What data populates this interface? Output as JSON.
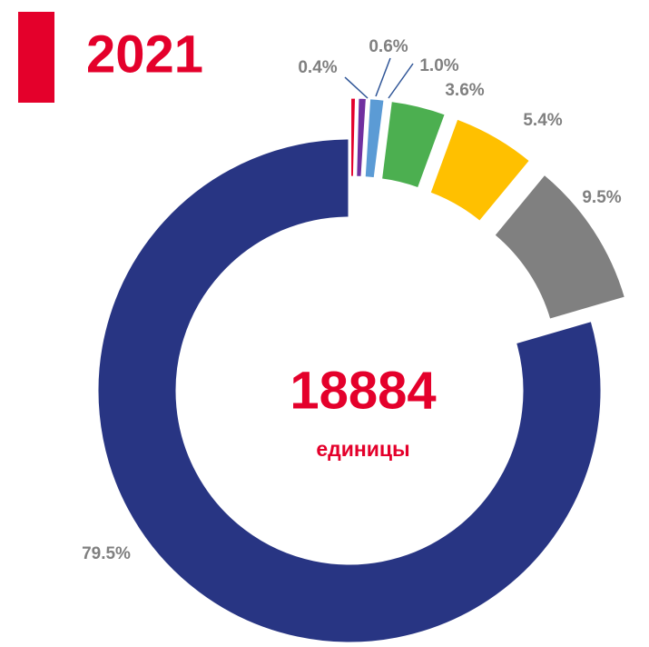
{
  "chart_data": {
    "type": "donut",
    "title": "2021",
    "center_value": "18884",
    "center_label": "единицы",
    "values": [
      0.4,
      0.6,
      1.0,
      3.6,
      5.4,
      9.5,
      79.5
    ],
    "value_labels": [
      "0.4%",
      "0.6%",
      "1.0%",
      "3.6%",
      "5.4%",
      "9.5%",
      "79.5%"
    ],
    "colors": [
      "#e4002b",
      "#7030a0",
      "#5b9bd5",
      "#4caf50",
      "#ffc000",
      "#808080",
      "#283583"
    ],
    "exploded": [
      true,
      true,
      true,
      true,
      true,
      true,
      false
    ]
  }
}
